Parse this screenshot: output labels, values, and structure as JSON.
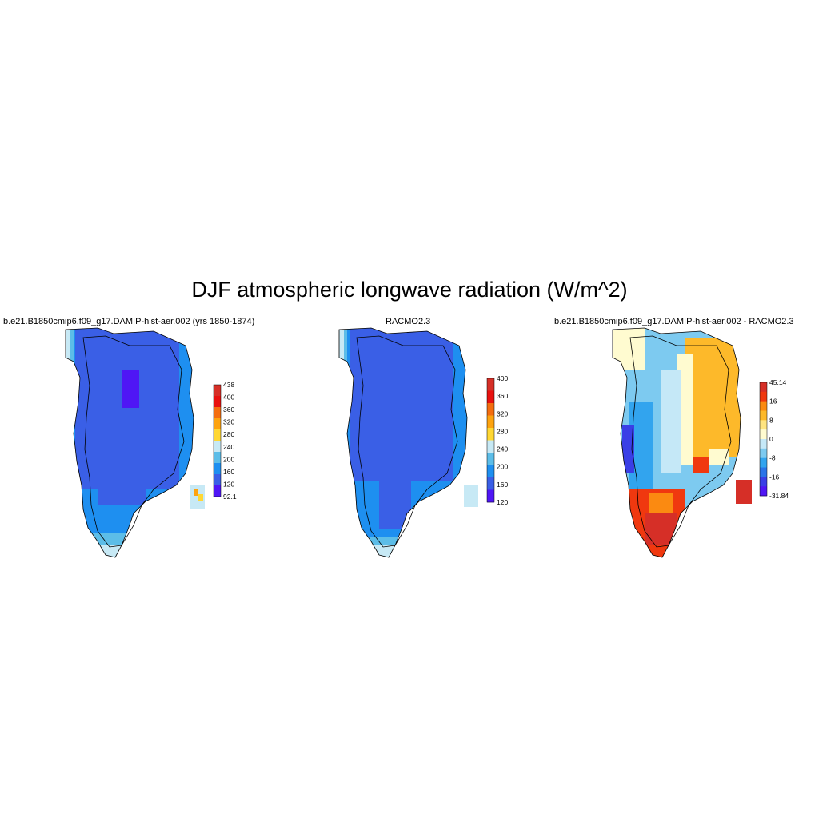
{
  "title": "DJF atmospheric longwave radiation (W/m^2)",
  "panels": [
    {
      "title": "b.e21.B1850cmip6.f09_g17.DAMIP-hist-aer.002 (yrs 1850-1874)",
      "colorbar": {
        "labels": [
          "438",
          "400",
          "360",
          "320",
          "280",
          "240",
          "200",
          "160",
          "120",
          "92.1"
        ],
        "colors": [
          "#d62f27",
          "#e8110f",
          "#f46d0f",
          "#fda30f",
          "#ffd733",
          "#c7e9f5",
          "#5cbde8",
          "#1e8ff0",
          "#3a5fe6",
          "#4f16f5"
        ]
      }
    },
    {
      "title": "RACMO2.3",
      "colorbar": {
        "labels": [
          "400",
          "360",
          "320",
          "280",
          "240",
          "200",
          "160",
          "120"
        ],
        "colors": [
          "#d62f27",
          "#e8110f",
          "#f46d0f",
          "#fda30f",
          "#ffd733",
          "#c7e9f5",
          "#5cbde8",
          "#1e8ff0",
          "#3a5fe6",
          "#4f16f5"
        ]
      }
    },
    {
      "title": "b.e21.B1850cmip6.f09_g17.DAMIP-hist-aer.002 - RACMO2.3",
      "colorbar": {
        "labels": [
          "45.14",
          "16",
          "8",
          "0",
          "-8",
          "-16",
          "-31.84"
        ],
        "colors": [
          "#d62f27",
          "#f0380f",
          "#fb8a11",
          "#fdb92a",
          "#ffe480",
          "#fffbd0",
          "#c5e8f7",
          "#7dcaf0",
          "#32a4ee",
          "#2a74e8",
          "#3a3fe6",
          "#4f16f5"
        ]
      }
    }
  ]
}
